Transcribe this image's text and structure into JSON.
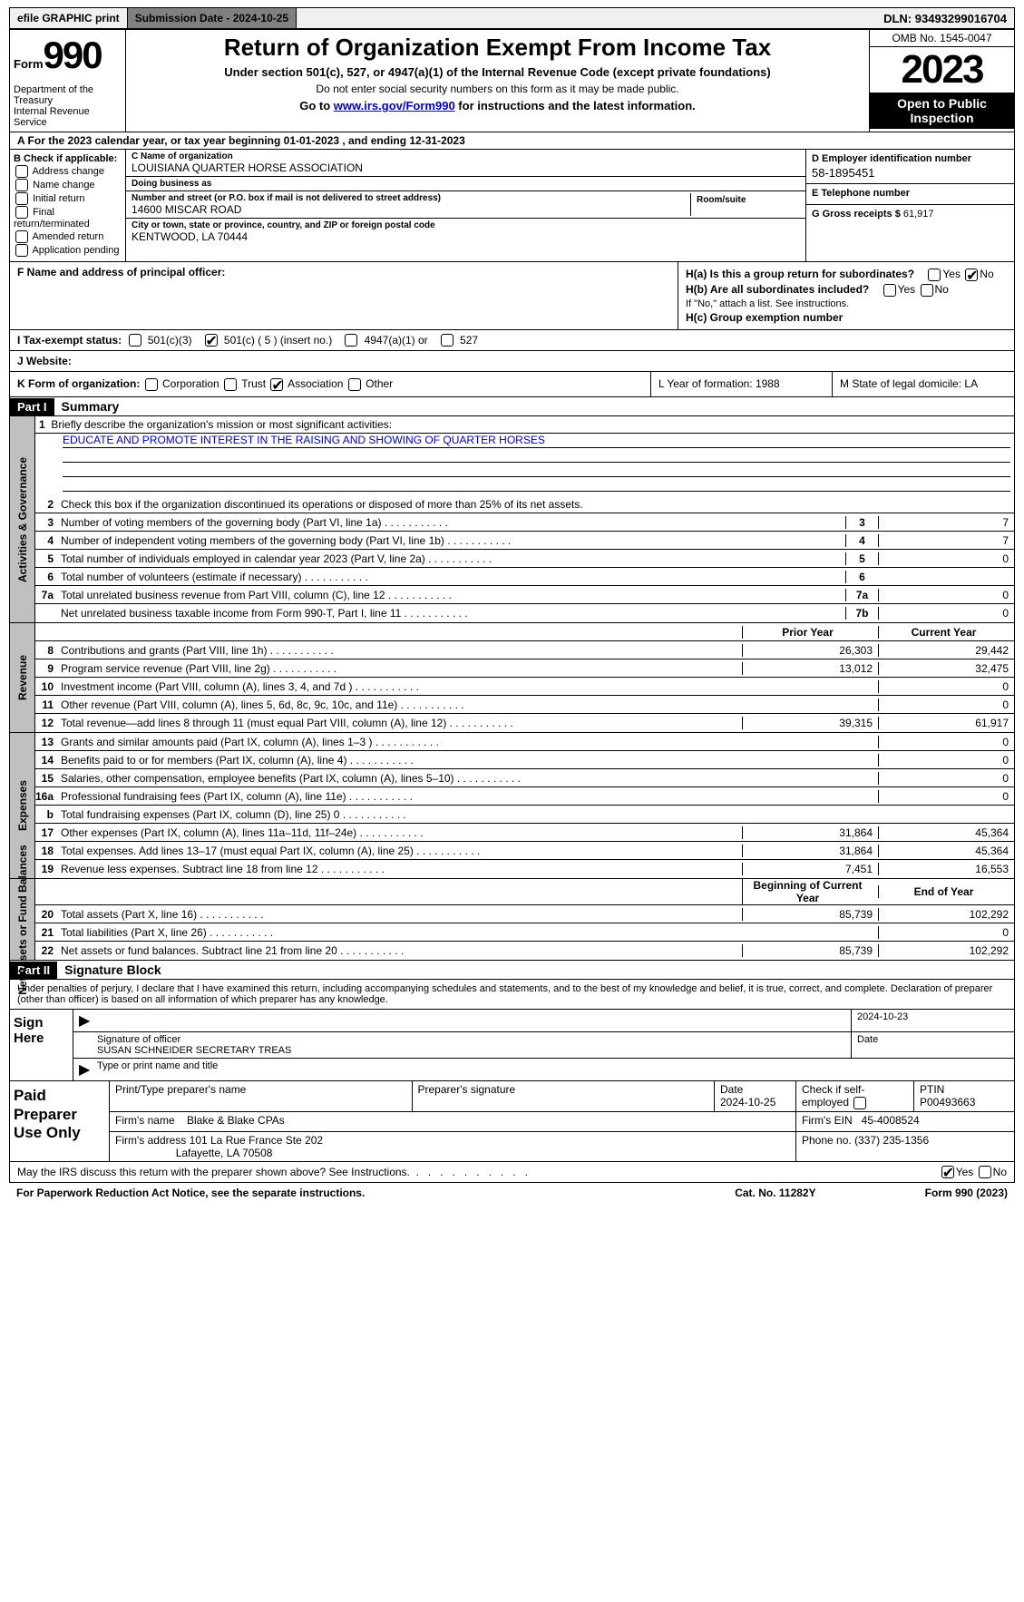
{
  "topbar": {
    "efile": "efile GRAPHIC print",
    "submission": "Submission Date - 2024-10-25",
    "dln_label": "DLN:",
    "dln": "93493299016704"
  },
  "header": {
    "form_label": "Form",
    "form_num": "990",
    "dept": "Department of the Treasury\nInternal Revenue Service",
    "title": "Return of Organization Exempt From Income Tax",
    "sub1": "Under section 501(c), 527, or 4947(a)(1) of the Internal Revenue Code (except private foundations)",
    "sub2": "Do not enter social security numbers on this form as it may be made public.",
    "sub3_pre": "Go to ",
    "sub3_link": "www.irs.gov/Form990",
    "sub3_post": " for instructions and the latest information.",
    "omb": "OMB No. 1545-0047",
    "year": "2023",
    "inspect": "Open to Public Inspection"
  },
  "row_a": "A For the 2023 calendar year, or tax year beginning 01-01-2023    , and ending 12-31-2023",
  "col_b": {
    "hdr": "B Check if applicable:",
    "items": [
      "Address change",
      "Name change",
      "Initial return",
      "Final return/terminated",
      "Amended return",
      "Application pending"
    ]
  },
  "col_c": {
    "name_lbl": "C Name of organization",
    "name": "LOUISIANA QUARTER HORSE ASSOCIATION",
    "dba_lbl": "Doing business as",
    "dba": "",
    "street_lbl": "Number and street (or P.O. box if mail is not delivered to street address)",
    "street": "14600 MISCAR ROAD",
    "room_lbl": "Room/suite",
    "room": "",
    "city_lbl": "City or town, state or province, country, and ZIP or foreign postal code",
    "city": "KENTWOOD, LA  70444"
  },
  "col_right": {
    "d_lbl": "D Employer identification number",
    "d_val": "58-1895451",
    "e_lbl": "E Telephone number",
    "e_val": "",
    "g_lbl": "G Gross receipts $",
    "g_val": "61,917"
  },
  "row_f": {
    "f_lbl": "F  Name and address of principal officer:",
    "ha": "H(a)  Is this a group return for subordinates?",
    "hb": "H(b)  Are all subordinates included?",
    "hb_note": "If \"No,\" attach a list. See instructions.",
    "hc": "H(c)  Group exemption number",
    "yes": "Yes",
    "no": "No"
  },
  "row_i": {
    "label": "I   Tax-exempt status:",
    "o1": "501(c)(3)",
    "o2": "501(c) ( 5 ) (insert no.)",
    "o3": "4947(a)(1) or",
    "o4": "527"
  },
  "row_j": {
    "label": "J   Website:",
    "val": ""
  },
  "row_klm": {
    "k": "K Form of organization:",
    "k_opts": [
      "Corporation",
      "Trust",
      "Association",
      "Other"
    ],
    "l": "L Year of formation: 1988",
    "m": "M State of legal domicile: LA"
  },
  "part1": {
    "label": "Part I",
    "title": "Summary"
  },
  "mission": {
    "prompt": "Briefly describe the organization's mission or most significant activities:",
    "text": "EDUCATE AND PROMOTE INTEREST IN THE RAISING AND SHOWING OF QUARTER HORSES"
  },
  "vtabs": {
    "gov": "Activities & Governance",
    "rev": "Revenue",
    "exp": "Expenses",
    "net": "Net Assets or Fund Balances"
  },
  "gov_lines": {
    "l2": "Check this box       if the organization discontinued its operations or disposed of more than 25% of its net assets.",
    "l3": {
      "num": "3",
      "txt": "Number of voting members of the governing body (Part VI, line 1a)",
      "box": "3",
      "val": "7"
    },
    "l4": {
      "num": "4",
      "txt": "Number of independent voting members of the governing body (Part VI, line 1b)",
      "box": "4",
      "val": "7"
    },
    "l5": {
      "num": "5",
      "txt": "Total number of individuals employed in calendar year 2023 (Part V, line 2a)",
      "box": "5",
      "val": "0"
    },
    "l6": {
      "num": "6",
      "txt": "Total number of volunteers (estimate if necessary)",
      "box": "6",
      "val": ""
    },
    "l7a": {
      "num": "7a",
      "txt": "Total unrelated business revenue from Part VIII, column (C), line 12",
      "box": "7a",
      "val": "0"
    },
    "l7b": {
      "num": "",
      "txt": "Net unrelated business taxable income from Form 990-T, Part I, line 11",
      "box": "7b",
      "val": "0"
    }
  },
  "rev_hdr": {
    "prior": "Prior Year",
    "curr": "Current Year"
  },
  "rev_lines": [
    {
      "num": "8",
      "txt": "Contributions and grants (Part VIII, line 1h)",
      "p": "26,303",
      "c": "29,442"
    },
    {
      "num": "9",
      "txt": "Program service revenue (Part VIII, line 2g)",
      "p": "13,012",
      "c": "32,475"
    },
    {
      "num": "10",
      "txt": "Investment income (Part VIII, column (A), lines 3, 4, and 7d )",
      "p": "",
      "c": "0"
    },
    {
      "num": "11",
      "txt": "Other revenue (Part VIII, column (A), lines 5, 6d, 8c, 9c, 10c, and 11e)",
      "p": "",
      "c": "0"
    },
    {
      "num": "12",
      "txt": "Total revenue—add lines 8 through 11 (must equal Part VIII, column (A), line 12)",
      "p": "39,315",
      "c": "61,917"
    }
  ],
  "exp_lines": [
    {
      "num": "13",
      "txt": "Grants and similar amounts paid (Part IX, column (A), lines 1–3 )",
      "p": "",
      "c": "0"
    },
    {
      "num": "14",
      "txt": "Benefits paid to or for members (Part IX, column (A), line 4)",
      "p": "",
      "c": "0"
    },
    {
      "num": "15",
      "txt": "Salaries, other compensation, employee benefits (Part IX, column (A), lines 5–10)",
      "p": "",
      "c": "0"
    },
    {
      "num": "16a",
      "txt": "Professional fundraising fees (Part IX, column (A), line 11e)",
      "p": "",
      "c": "0"
    },
    {
      "num": "b",
      "txt": "Total fundraising expenses (Part IX, column (D), line 25) 0",
      "p": "SHADE",
      "c": "SHADE"
    },
    {
      "num": "17",
      "txt": "Other expenses (Part IX, column (A), lines 11a–11d, 11f–24e)",
      "p": "31,864",
      "c": "45,364"
    },
    {
      "num": "18",
      "txt": "Total expenses. Add lines 13–17 (must equal Part IX, column (A), line 25)",
      "p": "31,864",
      "c": "45,364"
    },
    {
      "num": "19",
      "txt": "Revenue less expenses. Subtract line 18 from line 12",
      "p": "7,451",
      "c": "16,553"
    }
  ],
  "net_hdr": {
    "prior": "Beginning of Current Year",
    "curr": "End of Year"
  },
  "net_lines": [
    {
      "num": "20",
      "txt": "Total assets (Part X, line 16)",
      "p": "85,739",
      "c": "102,292"
    },
    {
      "num": "21",
      "txt": "Total liabilities (Part X, line 26)",
      "p": "",
      "c": "0"
    },
    {
      "num": "22",
      "txt": "Net assets or fund balances. Subtract line 21 from line 20",
      "p": "85,739",
      "c": "102,292"
    }
  ],
  "part2": {
    "label": "Part II",
    "title": "Signature Block"
  },
  "sig": {
    "intro": "Under penalties of perjury, I declare that I have examined this return, including accompanying schedules and statements, and to the best of my knowledge and belief, it is true, correct, and complete. Declaration of preparer (other than officer) is based on all information of which preparer has any knowledge.",
    "sign_here": "Sign Here",
    "sig_lbl": "Signature of officer",
    "officer": "SUSAN SCHNEIDER  SECRETARY TREAS",
    "type_lbl": "Type or print name and title",
    "date_lbl": "Date",
    "date": "2024-10-23"
  },
  "prep": {
    "title": "Paid Preparer Use Only",
    "print_lbl": "Print/Type preparer's name",
    "sig_lbl": "Preparer's signature",
    "date_lbl": "Date",
    "date": "2024-10-25",
    "check_lbl": "Check       if self-employed",
    "ptin_lbl": "PTIN",
    "ptin": "P00493663",
    "firm_name_lbl": "Firm's name",
    "firm_name": "Blake & Blake CPAs",
    "firm_ein_lbl": "Firm's EIN",
    "firm_ein": "45-4008524",
    "firm_addr_lbl": "Firm's address",
    "firm_addr1": "101 La Rue France Ste 202",
    "firm_addr2": "Lafayette, LA  70508",
    "phone_lbl": "Phone no.",
    "phone": "(337) 235-1356"
  },
  "discuss": {
    "txt": "May the IRS discuss this return with the preparer shown above? See Instructions.",
    "yes": "Yes",
    "no": "No"
  },
  "footer": {
    "left": "For Paperwork Reduction Act Notice, see the separate instructions.",
    "mid": "Cat. No. 11282Y",
    "right": "Form 990 (2023)"
  }
}
